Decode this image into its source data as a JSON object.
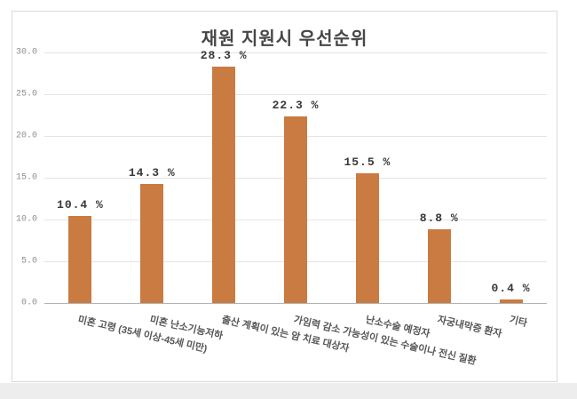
{
  "page": {
    "bottom_strip_color": "#ededed",
    "frame_border_color": "#d9d9d9"
  },
  "chart_data": {
    "type": "bar",
    "title": "재원 지원시 우선순위",
    "categories": [
      "미혼 고령 (35세 이상-45세 미만)",
      "미혼 난소기능저하",
      "출산 계획이 있는 암 치료 대상자",
      "가임력 감소 가능성이 있는 수술이나 전신 질환",
      "난소수술 예정자",
      "자궁내막증 환자",
      "기타"
    ],
    "values": [
      10.4,
      14.3,
      28.3,
      22.3,
      15.5,
      8.8,
      0.4
    ],
    "value_labels": [
      "10.4 %",
      "14.3 %",
      "28.3 %",
      "22.3 %",
      "15.5 %",
      "8.8 %",
      "0.4 %"
    ],
    "xlabel": "",
    "ylabel": "",
    "ylim": [
      0,
      30
    ],
    "yticks": [
      0,
      5,
      10,
      15,
      20,
      25,
      30
    ],
    "ytick_labels": [
      "0.0",
      "5.0",
      "10.0",
      "15.0",
      "20.0",
      "25.0",
      "30.0"
    ],
    "bar_color": "#c97b41",
    "grid": true,
    "legend_position": "none",
    "category_label_rotation_deg": 13
  }
}
